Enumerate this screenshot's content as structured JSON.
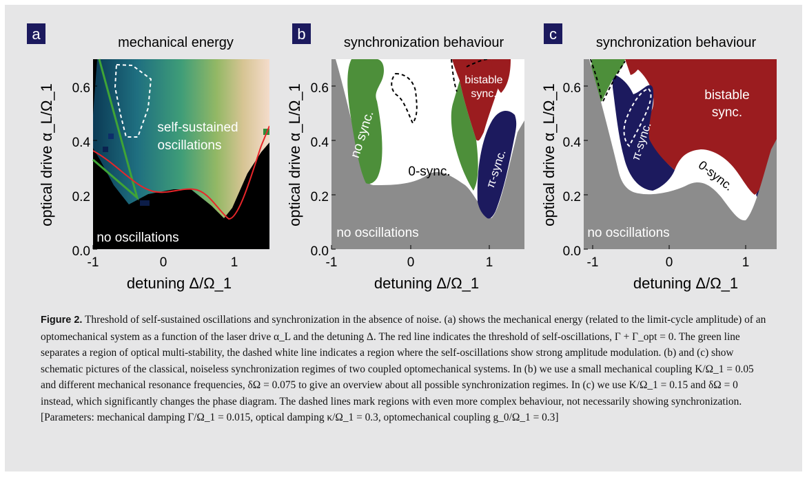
{
  "panels": [
    {
      "letter": "a",
      "title": "mechanical energy",
      "ylabel": "optical drive α_L/Ω_1",
      "xlabel": "detuning Δ/Ω_1",
      "region_labels": [
        "self-sustained",
        "oscillations",
        "no oscillations"
      ]
    },
    {
      "letter": "b",
      "title": "synchronization behaviour",
      "ylabel": "optical drive α_L/Ω_1",
      "xlabel": "detuning Δ/Ω_1",
      "region_labels": [
        "no sync.",
        "bistable",
        "sync.",
        "0-sync.",
        "π-sync.",
        "no oscillations"
      ]
    },
    {
      "letter": "c",
      "title": "synchronization behaviour",
      "ylabel": "optical drive α_L/Ω_1",
      "xlabel": "detuning Δ/Ω_1",
      "region_labels": [
        "bistable",
        "sync.",
        "π-sync.",
        "0-sync.",
        "no oscillations"
      ]
    }
  ],
  "axes": {
    "x_ticks": [
      "-1",
      "0",
      "1"
    ],
    "y_ticks": [
      "0.0",
      "0.2",
      "0.4",
      "0.6"
    ],
    "xlim": [
      -1,
      1.5
    ],
    "ylim": [
      0,
      0.7
    ]
  },
  "colors": {
    "frame": "#e6e6e7",
    "letter_box": "#1c1a5e",
    "threshold_line": "#e8262a",
    "multistability_line": "#3fa436",
    "no_sync": "#4d8f3a",
    "bistable": "#9b1c1f",
    "pi_sync": "#1c1a5e",
    "no_oscillations": "#8c8c8c"
  },
  "caption": {
    "label": "Figure 2.",
    "text": "Threshold of self-sustained oscillations and synchronization in the absence of noise. (a) shows the mechanical energy (related to the limit-cycle amplitude) of an optomechanical system as a function of the laser drive α_L and the detuning Δ. The red line indicates the threshold of self-oscillations, Γ + Γ_opt = 0. The green line separates a region of optical multi-stability, the dashed white line indicates a region where the self-oscillations show strong amplitude modulation. (b) and (c) show schematic pictures of the classical, noiseless synchronization regimes of two coupled optomechanical systems. In (b) we use a small mechanical coupling K/Ω_1 = 0.05 and different mechanical resonance frequencies, δΩ = 0.075 to give an overview about all possible synchronization regimes. In (c) we use K/Ω_1 = 0.15 and δΩ = 0 instead, which significantly changes the phase diagram. The dashed lines mark regions with even more complex behaviour, not necessarily showing synchronization. [Parameters: mechanical damping Γ/Ω_1 = 0.015, optical damping κ/Ω_1 = 0.3, optomechanical coupling g_0/Ω_1 = 0.3]"
  }
}
